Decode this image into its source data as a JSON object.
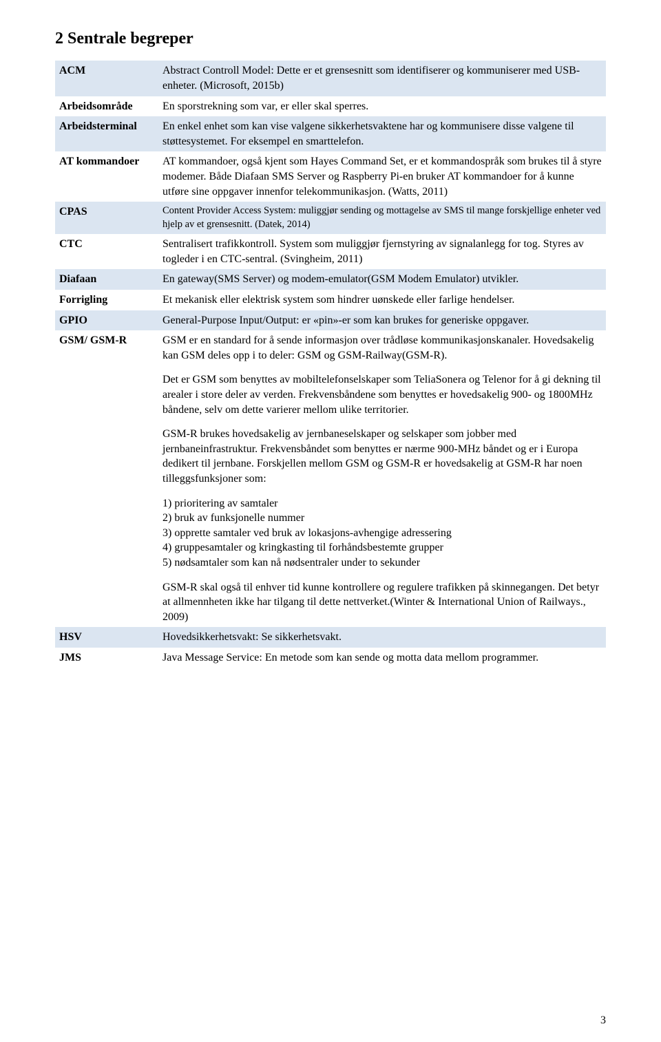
{
  "heading": "2  Sentrale begreper",
  "page_number": "3",
  "row_bg_alt": "#dbe5f1",
  "row_bg_base": "#ffffff",
  "text_color": "#000000",
  "font_family": "Times New Roman",
  "title_fontsize": 24,
  "body_fontsize": 16,
  "terms": [
    {
      "term": "ACM",
      "bg": "#dbe5f1",
      "desc": [
        "Abstract Controll Model: Dette er et grensesnitt som identifiserer og kommuniserer med USB-enheter. (Microsoft, 2015b)"
      ]
    },
    {
      "term": "Arbeidsområde",
      "bg": "#ffffff",
      "desc": [
        "En sporstrekning som var, er eller skal sperres."
      ]
    },
    {
      "term": "Arbeidsterminal",
      "bg": "#dbe5f1",
      "desc": [
        "En enkel enhet som kan vise valgene sikkerhetsvaktene har og kommunisere disse valgene til støttesystemet. For eksempel en smarttelefon."
      ]
    },
    {
      "term": "AT kommandoer",
      "bg": "#ffffff",
      "desc": [
        "AT kommandoer, også kjent som Hayes Command Set, er et kommandospråk som brukes til å styre modemer. Både Diafaan SMS Server og Raspberry Pi-en bruker AT kommandoer for å kunne utføre sine oppgaver innenfor telekommunikasjon. (Watts, 2011)"
      ]
    },
    {
      "term": "CPAS",
      "bg": "#dbe5f1",
      "desc": [
        "Content Provider Access System: muliggjør sending og mottagelse av SMS til mange forskjellige enheter ved hjelp av et grensesnitt. (Datek, 2014)"
      ]
    },
    {
      "term": "CTC",
      "bg": "#ffffff",
      "desc": [
        "Sentralisert trafikkontroll. System som muliggjør fjernstyring av signalanlegg for tog. Styres av togleder i en CTC-sentral. (Svingheim, 2011)"
      ]
    },
    {
      "term": "Diafaan",
      "bg": "#dbe5f1",
      "desc": [
        "En gateway(SMS Server) og modem-emulator(GSM Modem Emulator) utvikler."
      ]
    },
    {
      "term": "Forrigling",
      "bg": "#ffffff",
      "desc": [
        "Et mekanisk eller elektrisk system som hindrer uønskede eller farlige hendelser."
      ]
    },
    {
      "term": "GPIO",
      "bg": "#dbe5f1",
      "desc": [
        "General-Purpose Input/Output: er «pin»-er som kan brukes for generiske oppgaver."
      ]
    },
    {
      "term": "GSM/ GSM-R",
      "bg": "#ffffff",
      "desc": [
        "GSM er en standard for å sende informasjon over trådløse kommunikasjonskanaler. Hovedsakelig kan GSM deles opp i to deler: GSM og GSM-Railway(GSM-R).",
        "Det er GSM som benyttes av mobiltelefonselskaper som TeliaSonera og Telenor for å gi dekning til arealer i store deler av verden. Frekvensbåndene som benyttes er hovedsakelig 900- og 1800MHz båndene, selv om dette varierer mellom ulike territorier.",
        "GSM-R brukes hovedsakelig av jernbaneselskaper og selskaper som jobber med jernbaneinfrastruktur. Frekvensbåndet som benyttes er nærme 900-MHz båndet og er i Europa dedikert til jernbane. Forskjellen mellom GSM og GSM-R er hovedsakelig at GSM-R har noen tilleggsfunksjoner som:",
        "1) prioritering av samtaler\n2) bruk av funksjonelle nummer\n3) opprette samtaler ved bruk av lokasjons-avhengige adressering\n4) gruppesamtaler og kringkasting til forhåndsbestemte grupper\n5) nødsamtaler som kan nå nødsentraler under to sekunder",
        "GSM-R skal også til enhver tid kunne kontrollere og regulere trafikken på skinnegangen. Det betyr at allmennheten ikke har tilgang til dette nettverket.(Winter & International Union of Railways., 2009)"
      ]
    },
    {
      "term": "HSV",
      "bg": "#dbe5f1",
      "desc": [
        "Hovedsikkerhetsvakt: Se sikkerhetsvakt."
      ]
    },
    {
      "term": "JMS",
      "bg": "#ffffff",
      "desc": [
        "Java Message Service: En metode som kan sende og motta data mellom programmer."
      ]
    }
  ]
}
